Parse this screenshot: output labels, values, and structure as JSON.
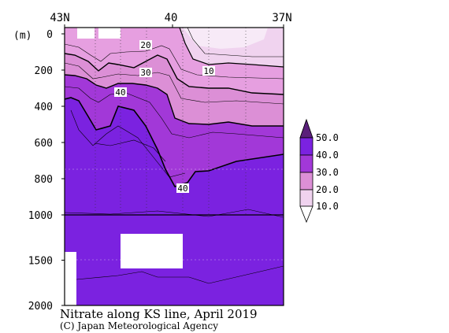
{
  "chart_data": {
    "type": "heatmap",
    "title": "Nitrate along KS line, April 2019",
    "credit": "(C) Japan Meteorological Agency",
    "x_axis": {
      "ticks": [
        "43N",
        "40",
        "37N"
      ],
      "tick_values": [
        43,
        40,
        37
      ],
      "range": [
        43,
        37
      ]
    },
    "y_axis": {
      "unit_label": "(m)",
      "ticks": [
        "0",
        "200",
        "400",
        "600",
        "800",
        "1000",
        "1500",
        "2000"
      ],
      "tick_values": [
        0,
        200,
        400,
        600,
        800,
        1000,
        1500,
        2000
      ],
      "range": [
        0,
        2000
      ],
      "scale_change_at": 1000
    },
    "colorbar": {
      "labels": [
        "50.0",
        "40.0",
        "30.0",
        "20.0",
        "10.0"
      ],
      "levels": [
        50,
        40,
        30,
        20,
        10
      ],
      "colors": [
        "#5a1f7a",
        "#7b22e0",
        "#a238d8",
        "#dc8fd6",
        "#f0d3ef",
        "#ffffff"
      ]
    },
    "contour_labels": [
      "20",
      "30",
      "10",
      "40",
      "40"
    ],
    "contour_levels": [
      10,
      20,
      30,
      40
    ]
  }
}
